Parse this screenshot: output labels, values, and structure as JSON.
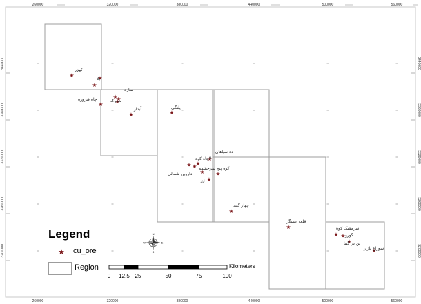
{
  "map": {
    "x_ticks_top": [
      "260000",
      "320000",
      "380000",
      "440000",
      "500000",
      "560000"
    ],
    "x_ticks_bottom": [
      "260000",
      "320000",
      "380000",
      "440000",
      "500000",
      "560000"
    ],
    "y_ticks": [
      "3440000",
      "3380000",
      "3320000",
      "3260000",
      "3200000"
    ],
    "marker_color": "#7a1518",
    "region_stroke_color": "#9c9c9c",
    "graticule_color": "#b0b0b0"
  },
  "sites": [
    {
      "id": "kehzar",
      "name": "کهزر"
    },
    {
      "id": "site-b",
      "name": "بلا"
    },
    {
      "id": "site-c",
      "name": ""
    },
    {
      "id": "sareh",
      "name": "ساره"
    },
    {
      "id": "meydook",
      "name": "میدوک"
    },
    {
      "id": "chah-firooze",
      "name": "چاه فیروزه"
    },
    {
      "id": "site-g",
      "name": ""
    },
    {
      "id": "abdar",
      "name": "آبدار"
    },
    {
      "id": "palangi",
      "name": "پلنگی"
    },
    {
      "id": "deh-siahan",
      "name": "ده سیاهان"
    },
    {
      "id": "lachah-koh",
      "name": "لاچاه کوه"
    },
    {
      "id": "site-l",
      "name": ""
    },
    {
      "id": "site-m",
      "name": ""
    },
    {
      "id": "koh-panj",
      "name": "کوه پنج سرچشمه"
    },
    {
      "id": "dehaj-shomali",
      "name": "داروین شمالی"
    },
    {
      "id": "zar",
      "name": "زر"
    },
    {
      "id": "chahargonbad",
      "name": "چهار گنبد"
    },
    {
      "id": "ghaleh-askar",
      "name": "قلعه عسگر"
    },
    {
      "id": "sarmeshk",
      "name": "سرمشک کوه"
    },
    {
      "id": "gowru",
      "name": "گورو"
    },
    {
      "id": "bondar",
      "name": "بن در گینا"
    },
    {
      "id": "savaran",
      "name": "سوراغ بازار"
    }
  ],
  "legend": {
    "title": "Legend",
    "ore_label": "cu_ore",
    "region_label": "Region"
  },
  "scale_bar": {
    "ticks": [
      "0",
      "12.5",
      "25",
      "50",
      "75",
      "100"
    ],
    "units": "Kilometers"
  },
  "north_arrow": {
    "n": "N",
    "s": "S",
    "e": "E",
    "w": "W"
  }
}
